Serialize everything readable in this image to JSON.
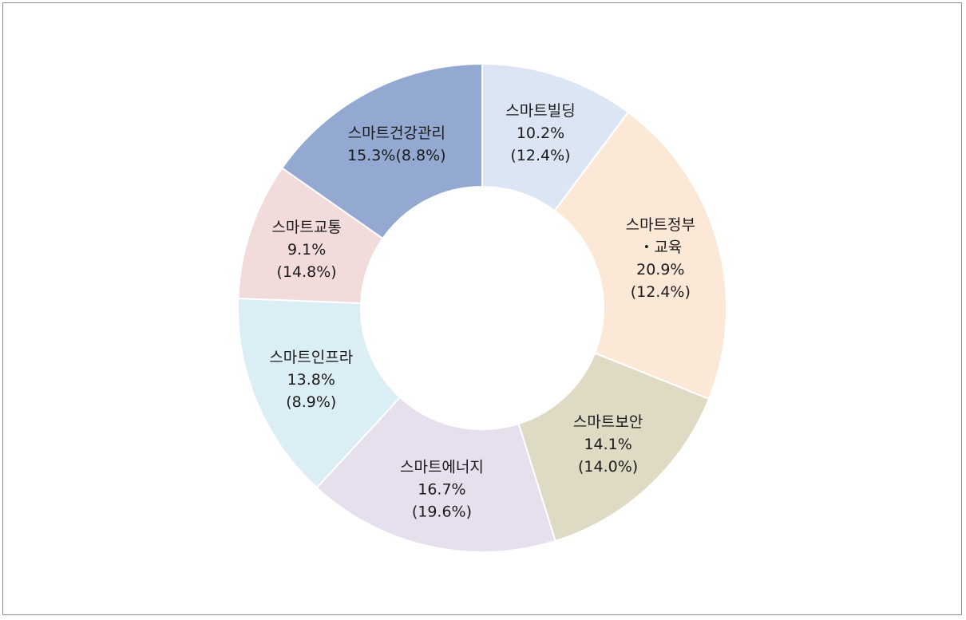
{
  "chart_data": {
    "type": "pie",
    "title": "",
    "start_category": "스마트빌딩",
    "direction": "clockwise",
    "categories": [
      "스마트빌딩",
      "스마트정부·교육",
      "스마트보안",
      "스마트에너지",
      "스마트인프라",
      "스마트교통",
      "스마트건강관리"
    ],
    "values": [
      10.2,
      20.9,
      14.1,
      16.7,
      13.8,
      9.1,
      15.3
    ],
    "secondary_values": [
      12.4,
      12.4,
      14.0,
      19.6,
      8.9,
      14.8,
      8.8
    ],
    "colors": [
      "#dce5f3",
      "#fce8d7",
      "#dedac3",
      "#e6e0ee",
      "#dbeef5",
      "#f2dcdb",
      "#94a9d1"
    ],
    "labels": [
      {
        "lines": [
          "스마트빌딩",
          "10.2%",
          "(12.4%)"
        ]
      },
      {
        "lines": [
          "스마트정부",
          "・교육",
          "20.9%",
          "(12.4%)"
        ]
      },
      {
        "lines": [
          "스마트보안",
          "14.1%",
          "(14.0%)"
        ]
      },
      {
        "lines": [
          "스마트에너지",
          "16.7%",
          "(19.6%)"
        ]
      },
      {
        "lines": [
          "스마트인프라",
          "13.8%",
          "(8.9%)"
        ]
      },
      {
        "lines": [
          "스마트교통",
          "9.1%",
          "(14.8%)"
        ]
      },
      {
        "lines": [
          "스마트건강관리",
          "15.3%(8.8%)"
        ]
      }
    ]
  }
}
